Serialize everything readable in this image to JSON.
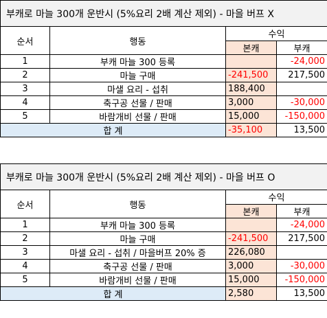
{
  "tables": [
    {
      "title": "부캐로 마늘 300개 운반시 (5%요리 2배 계산 제외) - 마을 버프 X",
      "headers": {
        "order": "순서",
        "action": "행동",
        "revenue": "수익",
        "main": "본캐",
        "sub": "부캐"
      },
      "rows": [
        {
          "order": "1",
          "action": "부캐 마늘 300 등록",
          "main": "",
          "sub": "-24,000"
        },
        {
          "order": "2",
          "action": "마늘 구매",
          "main": "-241,500",
          "sub": "217,500"
        },
        {
          "order": "3",
          "action": "마샐 요리 - 섭취",
          "main": "188,400",
          "sub": ""
        },
        {
          "order": "4",
          "action": "축구공 선물 / 판매",
          "main": "3,000",
          "sub": "-30,000"
        },
        {
          "order": "5",
          "action": "바람개비 선물 / 판매",
          "main": "15,000",
          "sub": "-150,000"
        }
      ],
      "total": {
        "label": "합 계",
        "main": "-35,100",
        "sub": "13,500"
      }
    },
    {
      "title": "부캐로 마늘 300개 운반시 (5%요리 2배 계산 제외) - 마을 버프 O",
      "headers": {
        "order": "순서",
        "action": "행동",
        "revenue": "수익",
        "main": "본캐",
        "sub": "부캐"
      },
      "rows": [
        {
          "order": "1",
          "action": "부캐 마늘 300 등록",
          "main": "",
          "sub": "-24,000"
        },
        {
          "order": "2",
          "action": "마늘 구매",
          "main": "-241,500",
          "sub": "217,500"
        },
        {
          "order": "3",
          "action": "마샐 요리 - 섭취 / 마을버프 20% 증",
          "main": "226,080",
          "sub": ""
        },
        {
          "order": "4",
          "action": "축구공 선물 / 판매",
          "main": "3,000",
          "sub": "-30,000"
        },
        {
          "order": "5",
          "action": "바람개비 선물 / 판매",
          "main": "15,000",
          "sub": "-150,000"
        }
      ],
      "total": {
        "label": "합 계",
        "main": "2,580",
        "sub": "13,500"
      }
    }
  ]
}
